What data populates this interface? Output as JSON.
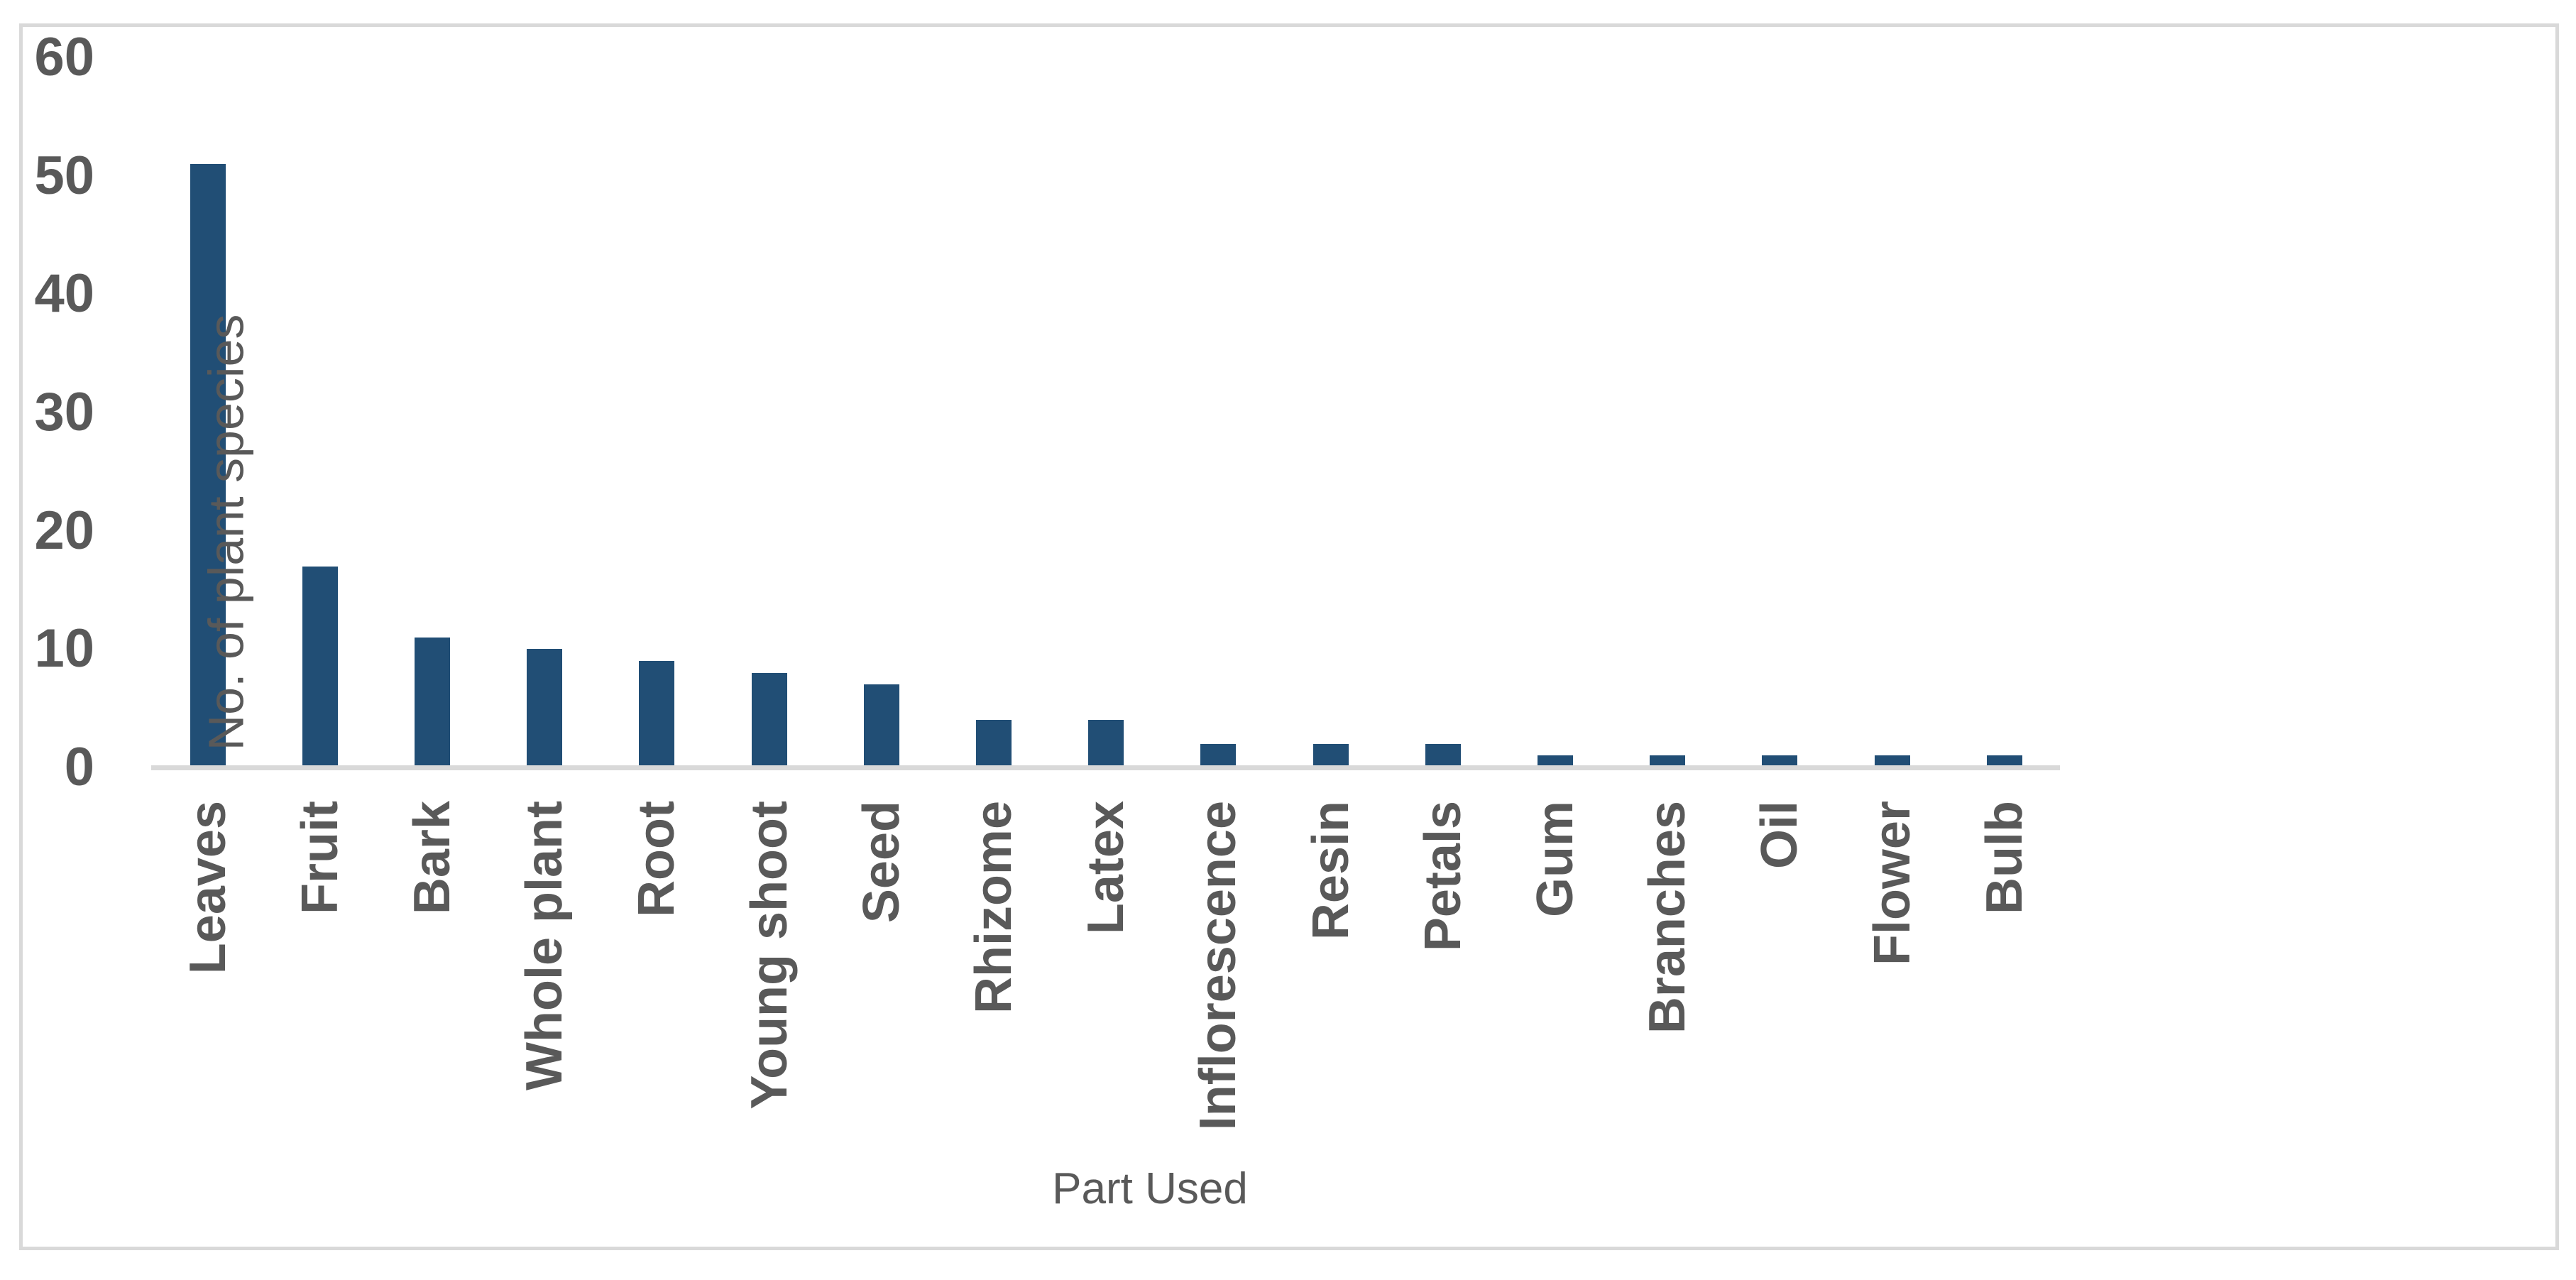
{
  "chart_data": {
    "type": "bar",
    "title": "",
    "categories": [
      "Leaves",
      "Fruit",
      "Bark",
      "Whole plant",
      "Root",
      "Young shoot",
      "Seed",
      "Rhizome",
      "Latex",
      "Inflorescence",
      "Resin",
      "Petals",
      "Gum",
      "Branches",
      "Oil",
      "Flower",
      "Bulb"
    ],
    "values": [
      51,
      17,
      11,
      10,
      9,
      8,
      7,
      4,
      4,
      2,
      2,
      2,
      1,
      1,
      1,
      1,
      1
    ],
    "xlabel": "Part Used",
    "ylabel": "No. of plant species",
    "ylim": [
      0,
      60
    ],
    "yticks": [
      0,
      10,
      20,
      30,
      40,
      50,
      60
    ],
    "grid": false,
    "legend": false,
    "bar_color": "#214E75",
    "text_color": "#595959",
    "axis_line_color": "#D9D9D9",
    "frame_border_color": "#D9D9D9"
  }
}
